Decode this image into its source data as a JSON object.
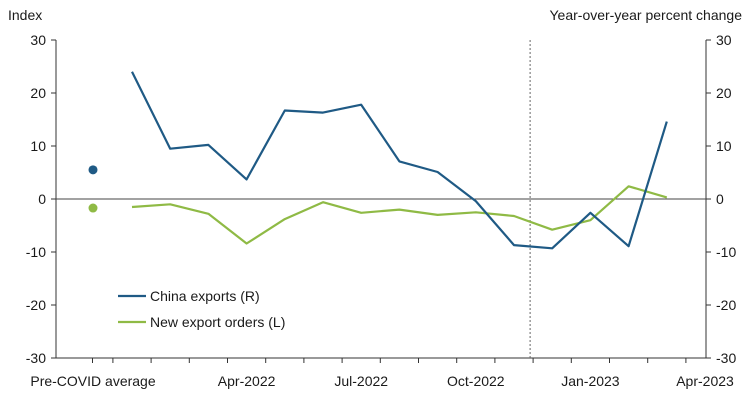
{
  "chart_data": {
    "type": "line",
    "left_axis_title": "Index",
    "right_axis_title": "Year-over-year percent change",
    "ylim": [
      -30,
      30
    ],
    "yticks": [
      30,
      20,
      10,
      0,
      -10,
      -20,
      -30
    ],
    "x_tick_labels": [
      "Pre-COVID average",
      "Apr-2022",
      "Jul-2022",
      "Oct-2022",
      "Jan-2023",
      "Apr-2023"
    ],
    "months": [
      "Jan-2022",
      "Feb-2022",
      "Mar-2022",
      "Apr-2022",
      "May-2022",
      "Jun-2022",
      "Jul-2022",
      "Aug-2022",
      "Sep-2022",
      "Oct-2022",
      "Nov-2022",
      "Dec-2022",
      "Jan-2023",
      "Feb-2023",
      "Mar-2023"
    ],
    "pre_covid_average": {
      "China exports (R)": 5.5,
      "New export orders (L)": -1.7
    },
    "dashed_divider_after": "Nov-2022",
    "series": [
      {
        "name": "China exports (R)",
        "axis": "right",
        "color": "#1f5a85",
        "values": [
          24.0,
          9.5,
          10.2,
          3.7,
          16.7,
          16.3,
          17.8,
          7.1,
          5.1,
          -0.4,
          -8.7,
          -9.3,
          -2.6,
          -8.9,
          14.6
        ]
      },
      {
        "name": "New export orders (L)",
        "axis": "left",
        "color": "#8fba45",
        "values": [
          -1.5,
          -1.0,
          -2.8,
          -8.4,
          -3.8,
          -0.6,
          -2.6,
          -2.0,
          -3.0,
          -2.5,
          -3.2,
          -5.8,
          -4.0,
          2.4,
          0.3
        ]
      }
    ],
    "legend_position": "lower-left",
    "grid": false
  }
}
